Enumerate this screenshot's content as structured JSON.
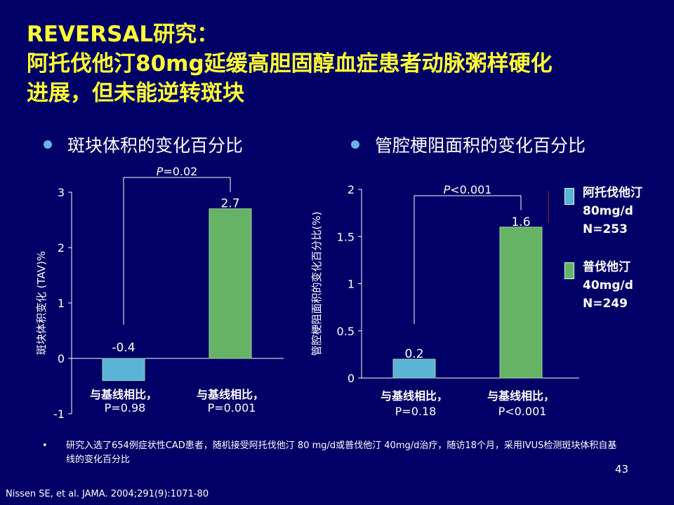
{
  "title": {
    "line1": "REVERSAL研究：",
    "line2": "阿托伐他汀80mg延缓高胆固醇血症患者动脉粥样硬化",
    "line3": "进展，但未能逆转斑块"
  },
  "colors": {
    "background": "#000066",
    "title": "#ffff33",
    "atorvastatin": "#5bb3d6",
    "pravastatin": "#66b366",
    "bullet": "#66b3e6"
  },
  "chart_data": [
    {
      "type": "bar",
      "bullet_title": "斑块体积的变化百分比",
      "ylabel": "斑块体积变化 (TAV)%",
      "ylim": [
        -1,
        3
      ],
      "ticks": [
        "3",
        "2",
        "1",
        "0",
        "-1"
      ],
      "categories": [
        "阿托伐他汀 80mg/d",
        "普伐他汀 40mg/d"
      ],
      "values": [
        -0.4,
        2.7
      ],
      "value_labels": [
        "-0.4",
        "2.7"
      ],
      "comparison": "P=0.02",
      "bar_notes": [
        {
          "line1": "与基线相比，",
          "line2": "P=0.98"
        },
        {
          "line1": "与基线相比，",
          "line2": "P=0.001"
        }
      ]
    },
    {
      "type": "bar",
      "bullet_title": "管腔梗阻面积的变化百分比",
      "ylabel": "管腔梗阻面积的变化百分比(%)",
      "ylim": [
        0,
        2
      ],
      "ticks": [
        "2",
        "1.5",
        "1",
        "0.5",
        "0"
      ],
      "categories": [
        "阿托伐他汀 80mg/d",
        "普伐他汀 40mg/d"
      ],
      "values": [
        0.2,
        1.6
      ],
      "value_labels": [
        "0.2",
        "1.6"
      ],
      "comparison": "P<0.001",
      "bar_notes": [
        {
          "line1": "与基线相比，",
          "line2": "P=0.18"
        },
        {
          "line1": "与基线相比，",
          "line2": "P<0.001"
        }
      ]
    }
  ],
  "legend": [
    {
      "line1": "阿托伐他汀",
      "line2": "80mg/d",
      "line3": "N=253"
    },
    {
      "line1": "普伐他汀",
      "line2": "40mg/d",
      "line3": "N=249"
    }
  ],
  "footnote": {
    "bullet": "•",
    "text": "研究入选了654例症状性CAD患者，随机接受阿托伐他汀 80 mg/d或普伐他汀 40mg/d治疗，随访18个月，采用IVUS检测斑块体积自基线的变化百分比"
  },
  "page_number": "43",
  "citation": "Nissen SE, et al. JAMA. 2004;291(9):1071-80"
}
